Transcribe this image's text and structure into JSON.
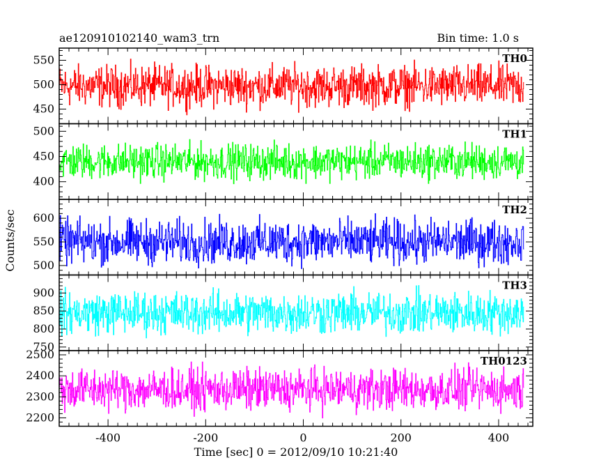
{
  "header": {
    "left_title": "ae120910102140_wam3_trn",
    "right_title": "Bin time: 1.0 s"
  },
  "chart_data": {
    "type": "line",
    "title": "ae120910102140_wam3_trn",
    "subtitle": "Bin time: 1.0 s",
    "xlabel": "Time [sec] 0 = 2012/09/10 10:21:40",
    "ylabel": "Counts/sec",
    "xlim": [
      -500,
      470
    ],
    "x_start": -500,
    "x_end": 452,
    "x_ticks": [
      -400,
      -200,
      0,
      200,
      400
    ],
    "grid": false,
    "panels": [
      {
        "name": "TH0",
        "color": "#ff0000",
        "ylim": [
          420,
          575
        ],
        "yticks": [
          450,
          500,
          550
        ],
        "mean": 497,
        "amplitude": 36
      },
      {
        "name": "TH1",
        "color": "#00ff00",
        "ylim": [
          365,
          515
        ],
        "yticks": [
          400,
          450,
          500
        ],
        "mean": 440,
        "amplitude": 30
      },
      {
        "name": "TH2",
        "color": "#0000ff",
        "ylim": [
          480,
          640
        ],
        "yticks": [
          500,
          550,
          600
        ],
        "mean": 550,
        "amplitude": 40
      },
      {
        "name": "TH3",
        "color": "#00ffff",
        "ylim": [
          740,
          950
        ],
        "yticks": [
          750,
          800,
          850,
          900
        ],
        "mean": 845,
        "amplitude": 50
      },
      {
        "name": "TH0123",
        "color": "#ff00ff",
        "ylim": [
          2160,
          2520
        ],
        "yticks": [
          2200,
          2300,
          2400,
          2500
        ],
        "mean": 2335,
        "amplitude": 85
      }
    ]
  }
}
